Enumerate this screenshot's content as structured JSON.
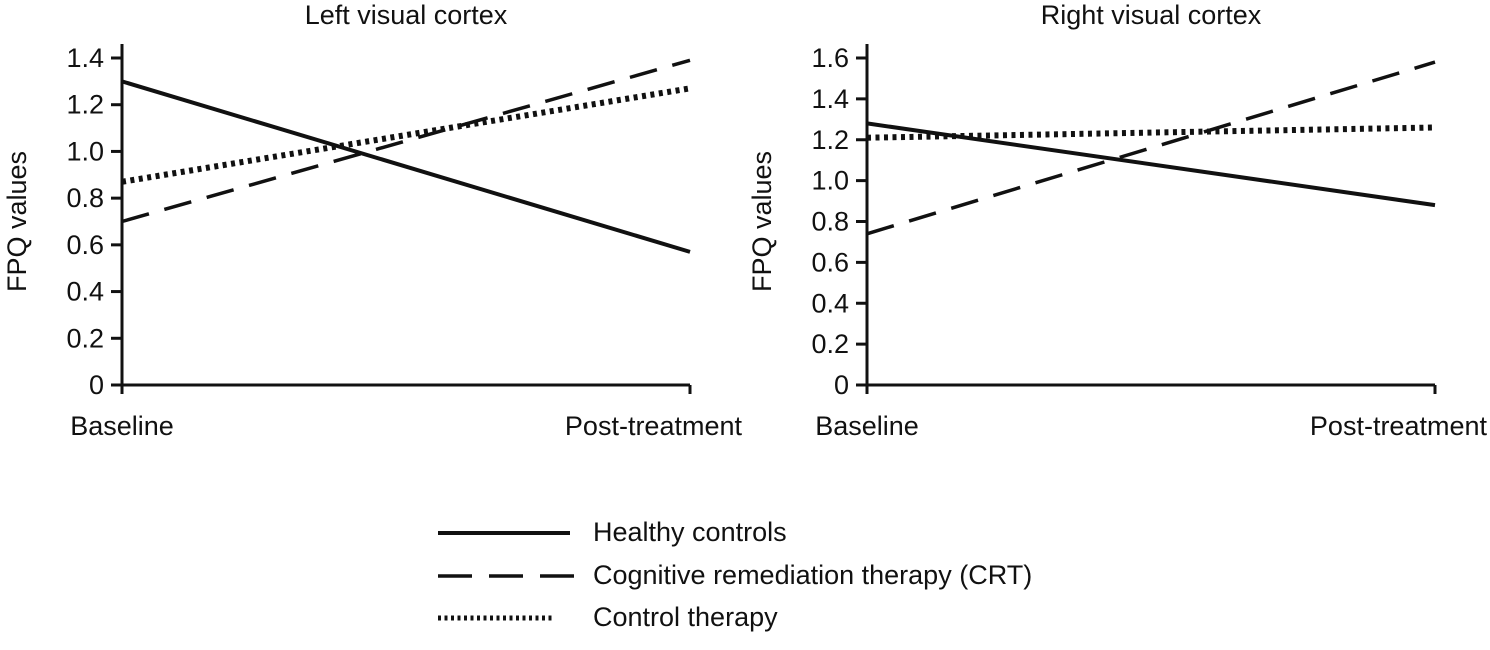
{
  "figure_name": "FPQ values in visual cortex by treatment group",
  "line_color": "#111111",
  "chart_data": [
    {
      "type": "line",
      "title": "Left visual cortex",
      "ylabel": "FPQ values",
      "xlabel": "",
      "categories": [
        "Baseline",
        "Post-treatment"
      ],
      "ylim": [
        0,
        1.4
      ],
      "ytick_step": 0.2,
      "grid": false,
      "legend_position": "bottom-shared",
      "series": [
        {
          "name": "Healthy controls",
          "style": "solid",
          "values": [
            1.3,
            0.57
          ]
        },
        {
          "name": "Cognitive remediation therapy (CRT)",
          "style": "dashed",
          "values": [
            0.7,
            1.39
          ]
        },
        {
          "name": "Control therapy",
          "style": "dotted",
          "values": [
            0.87,
            1.27
          ]
        }
      ]
    },
    {
      "type": "line",
      "title": "Right visual cortex",
      "ylabel": "FPQ values",
      "xlabel": "",
      "categories": [
        "Baseline",
        "Post-treatment"
      ],
      "ylim": [
        0,
        1.6
      ],
      "ytick_step": 0.2,
      "grid": false,
      "legend_position": "bottom-shared",
      "series": [
        {
          "name": "Healthy controls",
          "style": "solid",
          "values": [
            1.28,
            0.88
          ]
        },
        {
          "name": "Cognitive remediation therapy (CRT)",
          "style": "dashed",
          "values": [
            0.74,
            1.58
          ]
        },
        {
          "name": "Control therapy",
          "style": "dotted",
          "values": [
            1.21,
            1.26
          ]
        }
      ]
    }
  ],
  "legend": {
    "items": [
      {
        "label": "Healthy controls",
        "style": "solid"
      },
      {
        "label": "Cognitive remediation therapy (CRT)",
        "style": "dashed"
      },
      {
        "label": "Control therapy",
        "style": "dotted"
      }
    ]
  }
}
